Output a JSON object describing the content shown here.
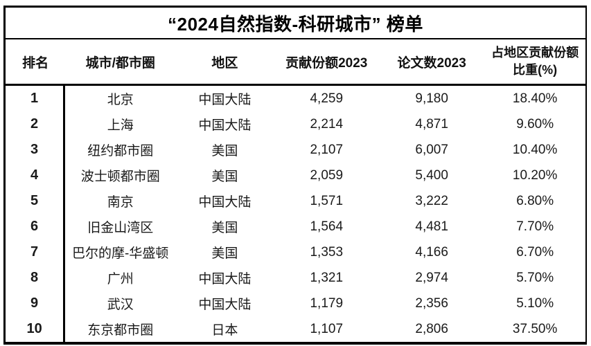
{
  "title": "“2024自然指数-科研城市” 榜单",
  "colors": {
    "border": "#000000",
    "text": "#1a1a1a",
    "background": "#ffffff"
  },
  "chart_data": {
    "type": "table",
    "title": "“2024自然指数-科研城市” 榜单",
    "columns": [
      "排名",
      "城市/都市圈",
      "地区",
      "贡献份额2023",
      "论文数2023",
      "占地区贡献份额\n比重(%)"
    ],
    "rows": [
      [
        "1",
        "北京",
        "中国大陆",
        "4,259",
        "9,180",
        "18.40%"
      ],
      [
        "2",
        "上海",
        "中国大陆",
        "2,214",
        "4,871",
        "9.60%"
      ],
      [
        "3",
        "纽约都市圈",
        "美国",
        "2,107",
        "6,007",
        "10.40%"
      ],
      [
        "4",
        "波士顿都市圈",
        "美国",
        "2,059",
        "5,400",
        "10.20%"
      ],
      [
        "5",
        "南京",
        "中国大陆",
        "1,571",
        "3,222",
        "6.80%"
      ],
      [
        "6",
        "旧金山湾区",
        "美国",
        "1,564",
        "4,481",
        "7.70%"
      ],
      [
        "7",
        "巴尔的摩-华盛顿",
        "美国",
        "1,353",
        "4,166",
        "6.70%"
      ],
      [
        "8",
        "广州",
        "中国大陆",
        "1,321",
        "2,974",
        "5.70%"
      ],
      [
        "9",
        "武汉",
        "中国大陆",
        "1,179",
        "2,356",
        "5.10%"
      ],
      [
        "10",
        "东京都市圈",
        "日本",
        "1,107",
        "2,806",
        "37.50%"
      ]
    ]
  }
}
